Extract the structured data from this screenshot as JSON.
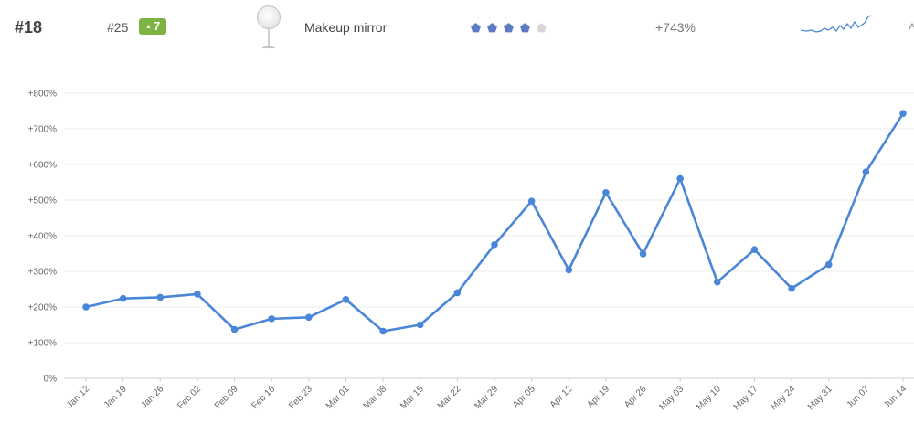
{
  "header": {
    "rank": "#18",
    "previous_rank": "#25",
    "rank_change": "7",
    "product_name": "Makeup mirror",
    "rating": {
      "filled": 4,
      "total": 5
    },
    "growth": "+743%",
    "colors": {
      "accent": "#4a86d8",
      "badge": "#7cb342",
      "rating_on": "#5c7bc4",
      "rating_off": "#d8d8d8"
    },
    "icons": [
      "mirror-product-image",
      "pentagon-rating-icon",
      "sparkline"
    ]
  },
  "chart_data": {
    "type": "line",
    "categories": [
      "Jan 12",
      "Jan 19",
      "Jan 26",
      "Feb 02",
      "Feb 09",
      "Feb 16",
      "Feb 23",
      "Mar 01",
      "Mar 08",
      "Mar 15",
      "Mar 22",
      "Mar 29",
      "Apr 05",
      "Apr 12",
      "Apr 19",
      "Apr 26",
      "May 03",
      "May 10",
      "May 17",
      "May 24",
      "May 31",
      "Jun 07",
      "Jun 14"
    ],
    "series": [
      {
        "values": [
          200,
          224,
          227,
          236,
          137,
          167,
          171,
          221,
          132,
          150,
          240,
          375,
          497,
          304,
          521,
          349,
          560,
          270,
          361,
          252,
          319,
          579,
          743
        ]
      }
    ],
    "yticks": [
      "0%",
      "+100%",
      "+200%",
      "+300%",
      "+400%",
      "+500%",
      "+600%",
      "+700%",
      "+800%"
    ],
    "ylim": [
      0,
      800
    ],
    "grid": true,
    "color": "#4a86d8"
  }
}
